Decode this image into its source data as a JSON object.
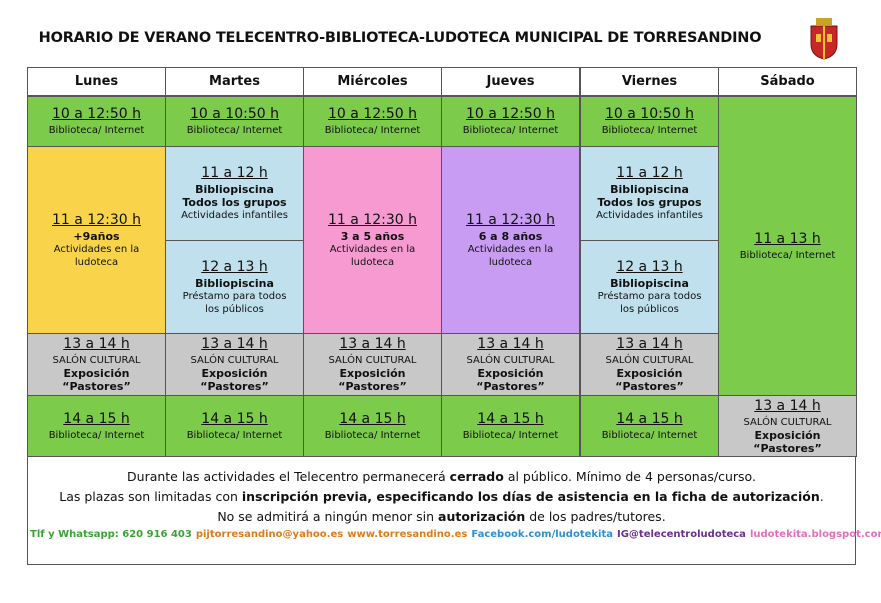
{
  "header": {
    "title": "HORARIO DE VERANO TELECENTRO-BIBLIOTECA-LUDOTECA MUNICIPAL DE TORRESANDINO"
  },
  "table": {
    "days": [
      "Lunes",
      "Martes",
      "Miércoles",
      "Jueves",
      "Viernes",
      "Sábado"
    ],
    "cells": [
      {
        "time": "10 a 12:50 h",
        "lines": [
          "Biblioteca/ Internet"
        ]
      },
      {
        "time": "10 a 10:50 h",
        "lines": [
          "Biblioteca/ Internet"
        ]
      },
      {
        "time": "10 a 12:50 h",
        "lines": [
          "Biblioteca/ Internet"
        ]
      },
      {
        "time": "10 a 12:50 h",
        "lines": [
          "Biblioteca/ Internet"
        ]
      },
      {
        "time": "10 a 10:50 h",
        "lines": [
          "Biblioteca/ Internet"
        ]
      },
      {
        "time": "11 a 13 h",
        "lines": [
          "Biblioteca/ Internet"
        ]
      },
      {
        "time": "11 a 12:30 h",
        "strong": [
          "+9años"
        ],
        "lines": [
          "Actividades en la ludoteca"
        ]
      },
      {
        "time": "11 a 12 h",
        "strong": [
          "Bibliopiscina",
          "Todos los grupos"
        ],
        "lines": [
          "Actividades infantiles"
        ]
      },
      {
        "time": "12 a 13 h",
        "strong": [
          "Bibliopiscina"
        ],
        "lines": [
          "Préstamo para todos los públicos"
        ]
      },
      {
        "time": "11 a 12:30 h",
        "strong": [
          "3 a 5 años"
        ],
        "lines": [
          "Actividades en la ludoteca"
        ]
      },
      {
        "time": "11 a 12:30 h",
        "strong": [
          "6 a 8 años"
        ],
        "lines": [
          "Actividades en la ludoteca"
        ]
      },
      {
        "time": "11 a 12 h",
        "strong": [
          "Bibliopiscina",
          "Todos los grupos"
        ],
        "lines": [
          "Actividades infantiles"
        ]
      },
      {
        "time": "12 a 13 h",
        "strong": [
          "Bibliopiscina"
        ],
        "lines": [
          "Préstamo para todos los públicos"
        ]
      },
      {
        "time": "13 a 14 h",
        "lines": [
          "SALÓN CULTURAL"
        ],
        "strong": [
          "Exposición “Pastores”"
        ]
      },
      {
        "time": "13 a 14 h",
        "lines": [
          "SALÓN CULTURAL"
        ],
        "strong": [
          "Exposición “Pastores”"
        ]
      },
      {
        "time": "13 a 14 h",
        "lines": [
          "SALÓN CULTURAL"
        ],
        "strong": [
          "Exposición “Pastores”"
        ]
      },
      {
        "time": "13 a 14 h",
        "lines": [
          "SALÓN CULTURAL"
        ],
        "strong": [
          "Exposición “Pastores”"
        ]
      },
      {
        "time": "13 a 14 h",
        "lines": [
          "SALÓN CULTURAL"
        ],
        "strong": [
          "Exposición “Pastores”"
        ]
      },
      {
        "time": "14 a 15 h",
        "lines": [
          "Biblioteca/ Internet"
        ]
      },
      {
        "time": "14 a 15 h",
        "lines": [
          "Biblioteca/ Internet"
        ]
      },
      {
        "time": "14 a 15 h",
        "lines": [
          "Biblioteca/ Internet"
        ]
      },
      {
        "time": "14 a 15 h",
        "lines": [
          "Biblioteca/ Internet"
        ]
      },
      {
        "time": "14 a 15 h",
        "lines": [
          "Biblioteca/ Internet"
        ]
      },
      {
        "time": "13 a 14 h",
        "lines": [
          "SALÓN CULTURAL"
        ],
        "strong": [
          "Exposición “Pastores”"
        ]
      }
    ]
  },
  "footer": {
    "lines": [
      [
        "Durante las actividades el Telecentro permanecerá ",
        "cerrado",
        " al público. Mínimo de 4 personas/curso."
      ],
      [
        "Las plazas son limitadas con ",
        "inscripción previa, especificando los días de asistencia en la ficha de autorización",
        "."
      ],
      [
        "No se admitirá a ningún menor sin ",
        "autorización",
        " de los padres/tutores."
      ]
    ],
    "contacts": [
      "Tlf y Whatsapp: 620 916 403",
      "pijtorresandino@yahoo.es",
      "www.torresandino.es",
      "Facebook.com/ludotekita",
      "IG@telecentroludoteca",
      "ludotekita.blogspot.com"
    ]
  }
}
